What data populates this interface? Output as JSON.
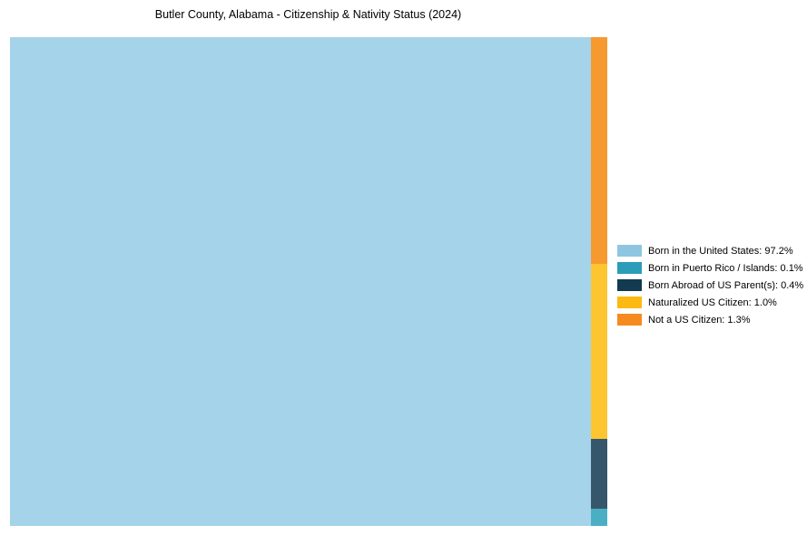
{
  "title": "Butler County, Alabama - Citizenship & Nativity Status (2024)",
  "chart_data": {
    "type": "treemap",
    "title": "Butler County, Alabama - Citizenship & Nativity Status (2024)",
    "unit": "%",
    "segments": [
      {
        "label": "Born in the United States",
        "value": 97.2,
        "fill": "#A5D3EA",
        "legend_color": "#8EC6E2",
        "legend_label": "Born in the United States: 97.2%"
      },
      {
        "label": "Born in Puerto Rico / Islands",
        "value": 0.1,
        "fill": "#4AAFC2",
        "legend_color": "#2A9DB8",
        "legend_label": "Born in Puerto Rico / Islands: 0.1%"
      },
      {
        "label": "Born Abroad of US Parent(s)",
        "value": 0.4,
        "fill": "#36566C",
        "legend_color": "#123A50",
        "legend_label": "Born Abroad of US Parent(s): 0.4%"
      },
      {
        "label": "Naturalized US Citizen",
        "value": 1.0,
        "fill": "#FDC530",
        "legend_color": "#FDB913",
        "legend_label": "Naturalized US Citizen: 1.0%"
      },
      {
        "label": "Not a US Citizen",
        "value": 1.3,
        "fill": "#F6992F",
        "legend_color": "#F68A1F",
        "legend_label": "Not a US Citizen: 1.3%"
      }
    ],
    "layout": {
      "legend_position": "right",
      "grid": false,
      "main_tile": "Born in the United States",
      "minor_column_order_top_to_bottom": [
        "Not a US Citizen",
        "Naturalized US Citizen",
        "Born Abroad of US Parent(s)",
        "Born in Puerto Rico / Islands"
      ]
    }
  }
}
